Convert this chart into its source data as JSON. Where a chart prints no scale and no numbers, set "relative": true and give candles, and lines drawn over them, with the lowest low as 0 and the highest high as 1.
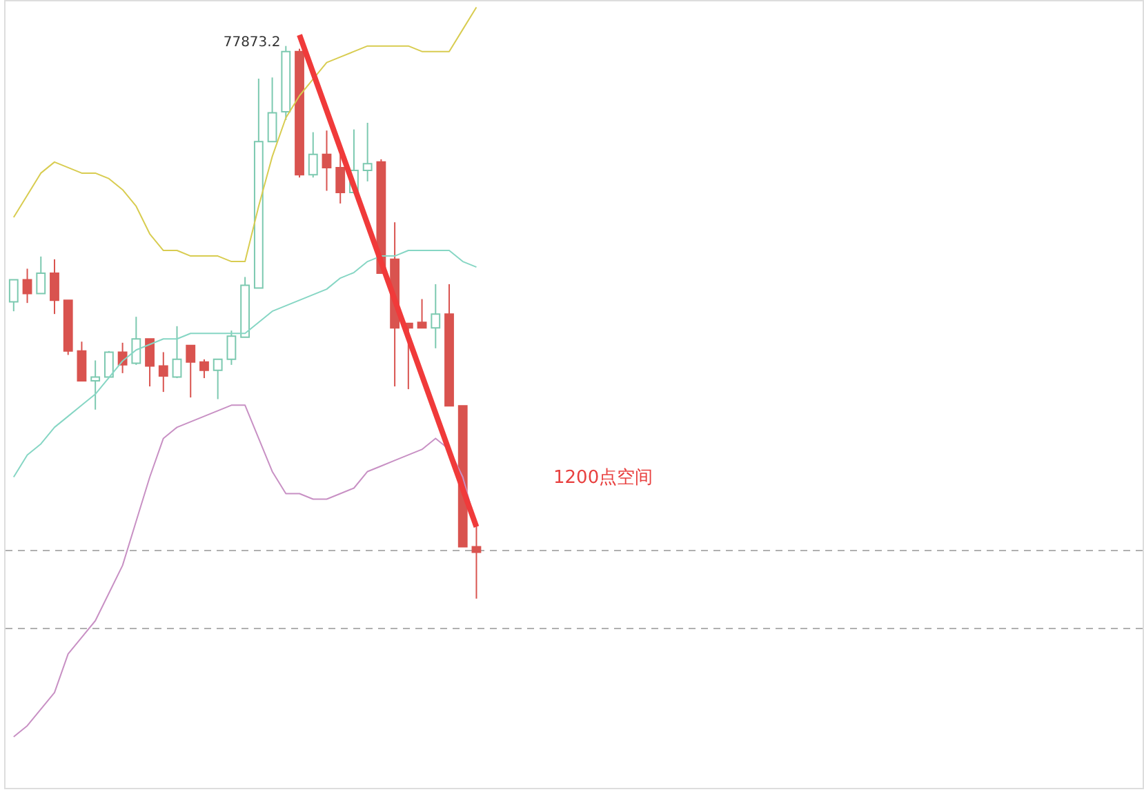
{
  "chart_data": {
    "type": "candlestick",
    "relative": true,
    "tick_labels": false,
    "categories": [
      null,
      null,
      null,
      null,
      null,
      null,
      null,
      null,
      null,
      null,
      null,
      null,
      null,
      null,
      null,
      null,
      null,
      null,
      null,
      null,
      null,
      null,
      null,
      null,
      null,
      null,
      null,
      null,
      null,
      null,
      null,
      null,
      null,
      null,
      null
    ],
    "ohlc": [
      [
        0.537,
        0.577,
        0.52,
        0.577
      ],
      [
        0.577,
        0.597,
        0.535,
        0.552
      ],
      [
        0.552,
        0.619,
        0.552,
        0.589
      ],
      [
        0.589,
        0.614,
        0.515,
        0.54
      ],
      [
        0.54,
        0.54,
        0.441,
        0.448
      ],
      [
        0.448,
        0.465,
        0.394,
        0.394
      ],
      [
        0.394,
        0.431,
        0.342,
        0.401
      ],
      [
        0.401,
        0.448,
        0.399,
        0.446
      ],
      [
        0.446,
        0.463,
        0.408,
        0.423
      ],
      [
        0.426,
        0.51,
        0.423,
        0.47
      ],
      [
        0.47,
        0.47,
        0.384,
        0.421
      ],
      [
        0.421,
        0.446,
        0.374,
        0.403
      ],
      [
        0.401,
        0.493,
        0.399,
        0.433
      ],
      [
        0.458,
        0.458,
        0.364,
        0.428
      ],
      [
        0.428,
        0.433,
        0.399,
        0.413
      ],
      [
        0.413,
        0.433,
        0.361,
        0.433
      ],
      [
        0.433,
        0.485,
        0.423,
        0.475
      ],
      [
        0.473,
        0.582,
        0.473,
        0.567
      ],
      [
        0.562,
        0.941,
        0.562,
        0.827
      ],
      [
        0.827,
        0.943,
        0.827,
        0.879
      ],
      [
        0.881,
        1,
        0.866,
        0.99
      ],
      [
        0.99,
        0.995,
        0.762,
        0.767
      ],
      [
        0.767,
        0.844,
        0.762,
        0.804
      ],
      [
        0.804,
        0.847,
        0.738,
        0.78
      ],
      [
        0.78,
        0.812,
        0.715,
        0.735
      ],
      [
        0.735,
        0.849,
        0.733,
        0.775
      ],
      [
        0.775,
        0.861,
        0.755,
        0.787
      ],
      [
        0.79,
        0.795,
        0.589,
        0.589
      ],
      [
        0.614,
        0.681,
        0.384,
        0.49
      ],
      [
        0.498,
        0.498,
        0.379,
        0.49
      ],
      [
        0.5,
        0.542,
        0.49,
        0.49
      ],
      [
        0.49,
        0.569,
        0.453,
        0.515
      ],
      [
        0.515,
        0.569,
        0.349,
        0.349
      ],
      [
        0.349,
        0.349,
        0.094,
        0.094
      ],
      [
        0.094,
        0.131,
        0,
        0.084
      ]
    ],
    "colors": [
      "#7cc9b0",
      "#d9534f",
      "#7cc9b0",
      "#d9534f",
      "#d9534f",
      "#d9534f",
      "#7cc9b0",
      "#7cc9b0",
      "#d9534f",
      "#7cc9b0",
      "#d9534f",
      "#d9534f",
      "#7cc9b0",
      "#d9534f",
      "#d9534f",
      "#7cc9b0",
      "#7cc9b0",
      "#7cc9b0",
      "#7cc9b0",
      "#7cc9b0",
      "#7cc9b0",
      "#d9534f",
      "#7cc9b0",
      "#d9534f",
      "#d9534f",
      "#7cc9b0",
      "#7cc9b0",
      "#d9534f",
      "#d9534f",
      "#d9534f",
      "#d9534f",
      "#7cc9b0",
      "#d9534f",
      "#d9534f",
      "#d9534f"
    ],
    "series": [
      {
        "type": "line",
        "color": "#d8cc50",
        "marker": "none",
        "line_style": "solid",
        "values": [
          0.69,
          0.73,
          0.77,
          0.79,
          0.78,
          0.77,
          0.77,
          0.76,
          0.74,
          0.71,
          0.66,
          0.63,
          0.63,
          0.62,
          0.62,
          0.62,
          0.61,
          0.61,
          0.71,
          0.8,
          0.87,
          0.91,
          0.94,
          0.97,
          0.98,
          0.99,
          1.0,
          1.0,
          1.0,
          1.0,
          0.99,
          0.99,
          0.99,
          1.03,
          1.07
        ]
      },
      {
        "type": "line",
        "color": "#86d6c4",
        "marker": "none",
        "line_style": "solid",
        "values": [
          0.22,
          0.26,
          0.28,
          0.31,
          0.33,
          0.35,
          0.37,
          0.4,
          0.43,
          0.45,
          0.46,
          0.47,
          0.47,
          0.48,
          0.48,
          0.48,
          0.48,
          0.48,
          0.5,
          0.52,
          0.53,
          0.54,
          0.55,
          0.56,
          0.58,
          0.59,
          0.61,
          0.62,
          0.62,
          0.63,
          0.63,
          0.63,
          0.63,
          0.61,
          0.6
        ]
      },
      {
        "type": "line",
        "color": "#c890c4",
        "marker": "none",
        "line_style": "solid",
        "values": [
          -0.25,
          -0.23,
          -0.2,
          -0.17,
          -0.1,
          -0.07,
          -0.04,
          0.01,
          0.06,
          0.14,
          0.22,
          0.29,
          0.31,
          0.32,
          0.33,
          0.34,
          0.35,
          0.35,
          0.29,
          0.23,
          0.19,
          0.19,
          0.18,
          0.18,
          0.19,
          0.2,
          0.23,
          0.24,
          0.25,
          0.26,
          0.27,
          0.29,
          0.27,
          0.22,
          0.13
        ]
      },
      {
        "type": "line",
        "color": "#f03a3a",
        "marker": "none",
        "line_style": "solid",
        "values": [
          null,
          null,
          null,
          null,
          null,
          null,
          null,
          null,
          null,
          null,
          null,
          null,
          null,
          null,
          null,
          null,
          null,
          null,
          null,
          null,
          null,
          1.02,
          null,
          null,
          null,
          null,
          null,
          null,
          null,
          null,
          null,
          null,
          null,
          null,
          0.13
        ]
      }
    ],
    "ref_lines": [
      {
        "axis": "y",
        "value": 0.087,
        "color": "#b0b0b0",
        "line_style": "dashed"
      },
      {
        "axis": "y",
        "value": -0.054,
        "color": "#b0b0b0",
        "line_style": "dashed"
      }
    ],
    "annotations": [
      "77873.2",
      "1200点空间"
    ]
  }
}
